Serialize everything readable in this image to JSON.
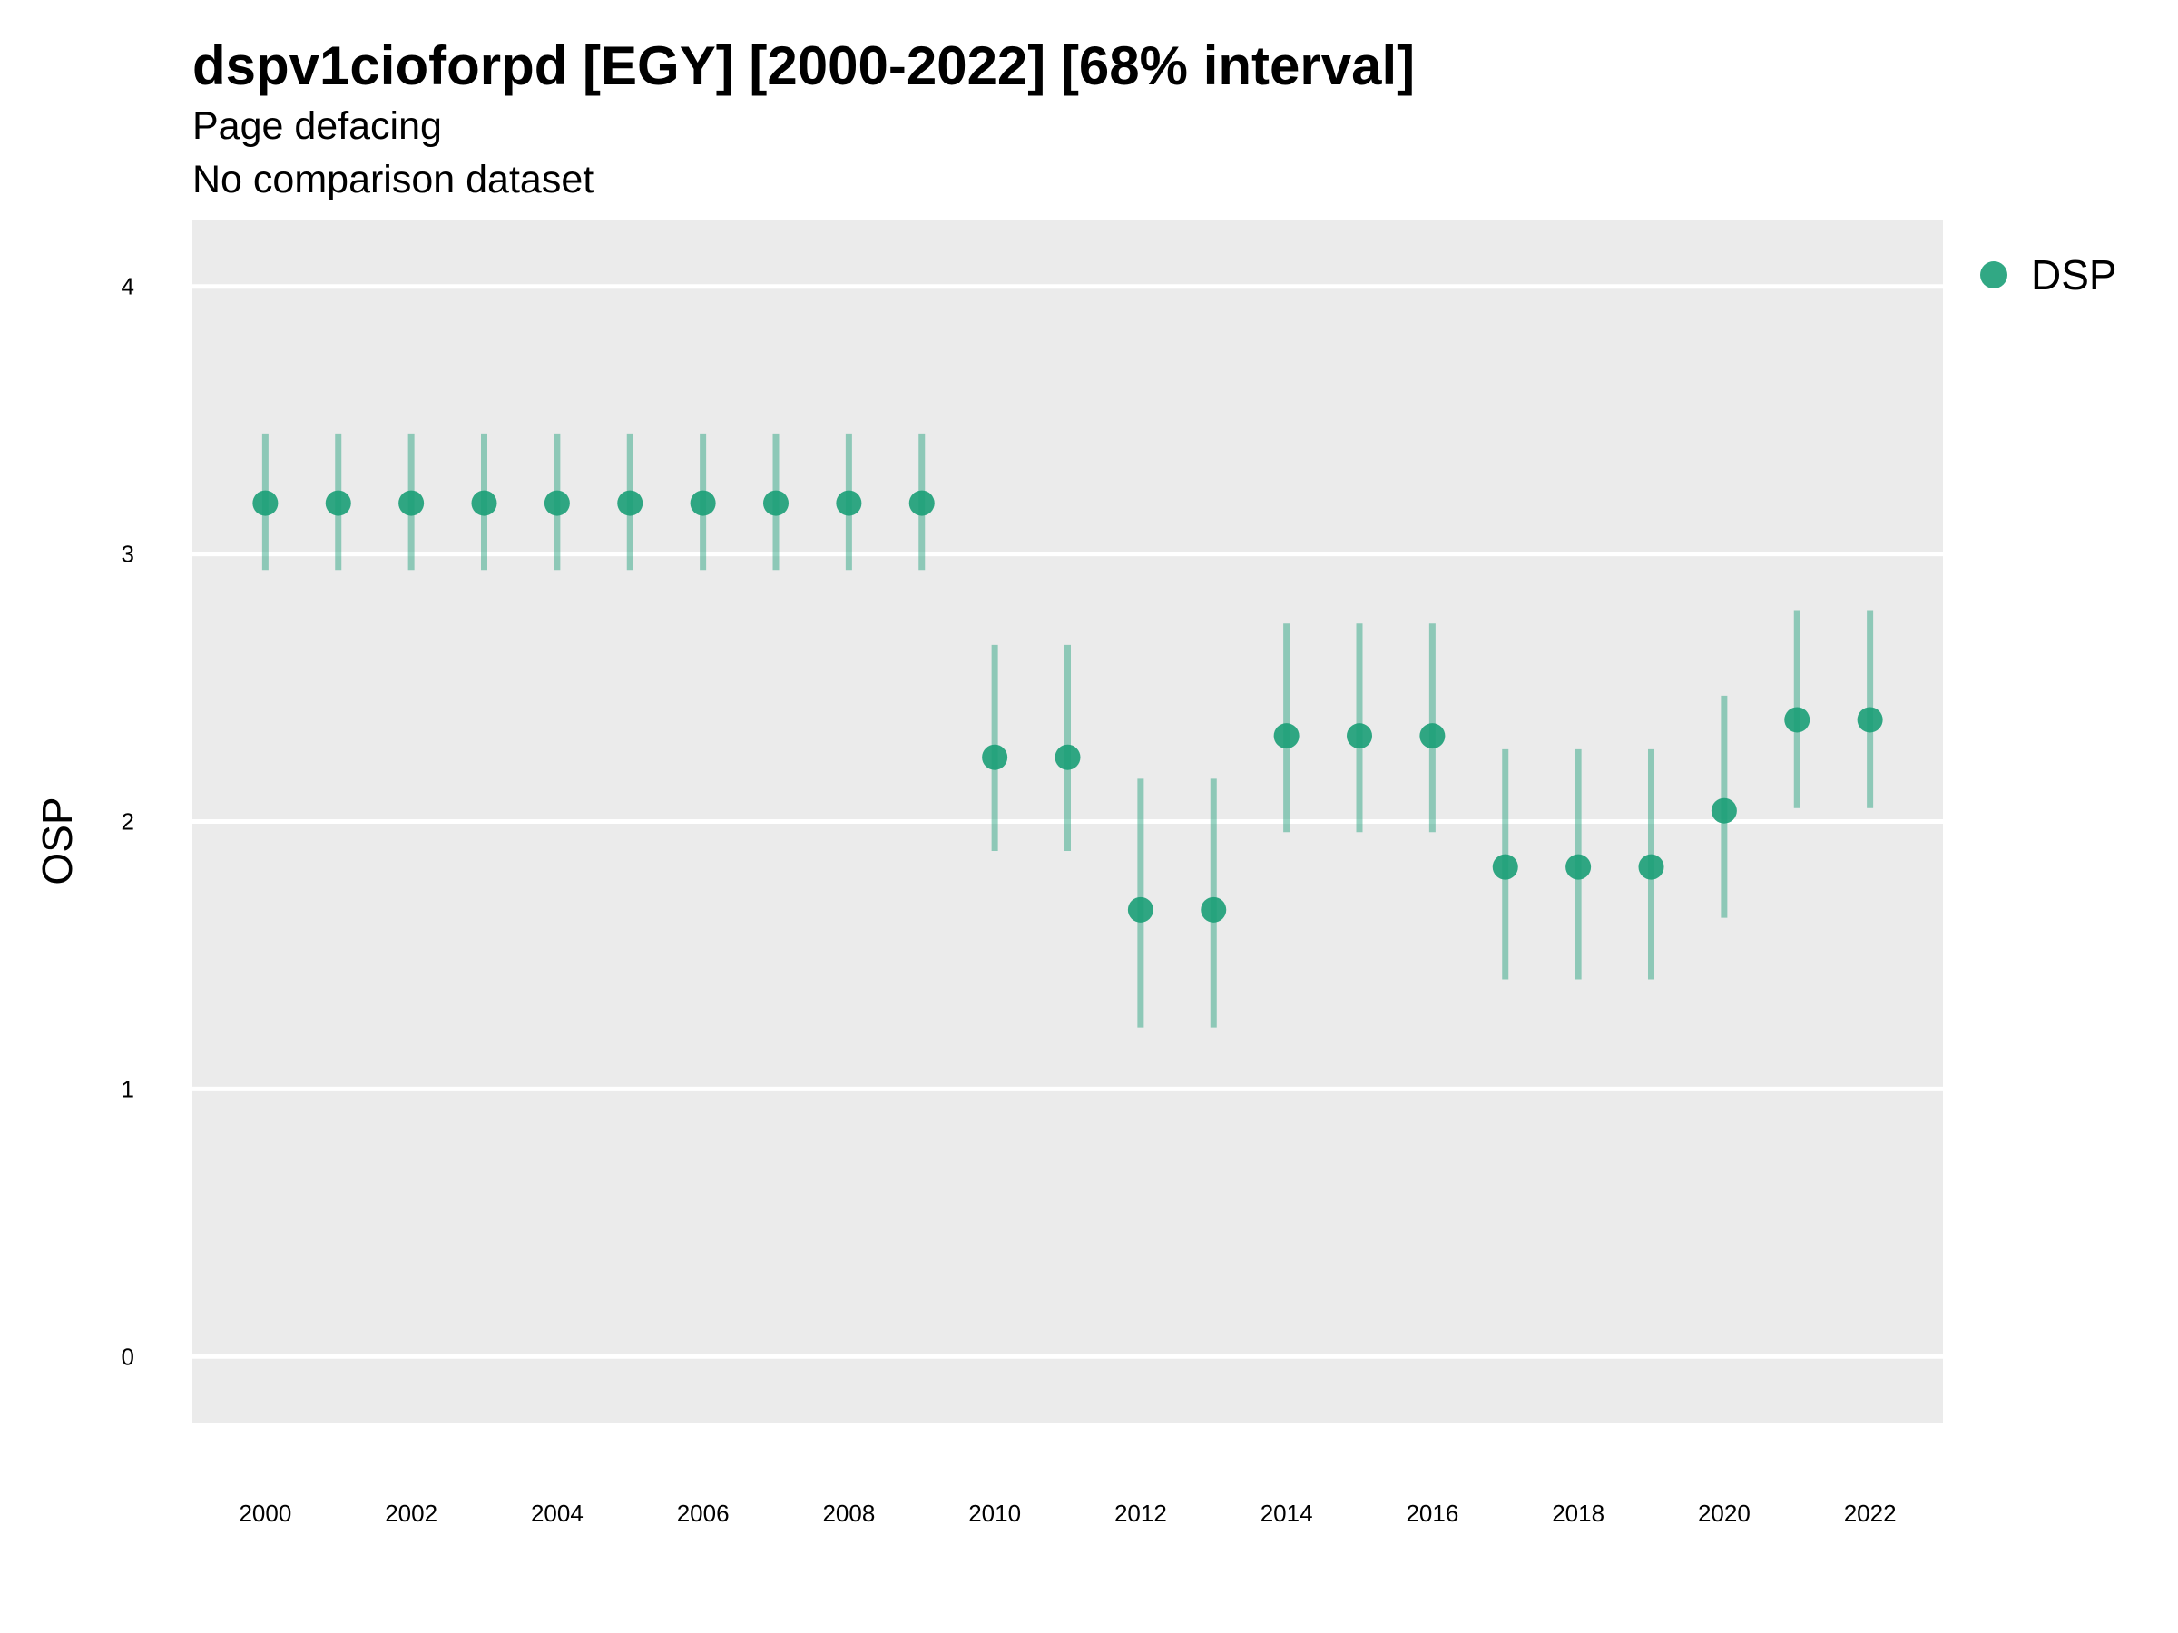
{
  "chart_data": {
    "type": "scatter",
    "title": "dspv1cioforpd [EGY] [2000-2022] [68% interval]",
    "subtitle": [
      "Page defacing",
      "No comparison dataset"
    ],
    "xlabel": "",
    "ylabel": "OSP",
    "ylim": [
      -0.25,
      4.25
    ],
    "xlim": [
      1999,
      2023
    ],
    "y_ticks": [
      "0",
      "1",
      "2",
      "3",
      "4"
    ],
    "x_ticks": [
      "2000",
      "2002",
      "2004",
      "2006",
      "2008",
      "2010",
      "2012",
      "2014",
      "2016",
      "2018",
      "2020",
      "2022"
    ],
    "grid": true,
    "legend_position": "top-right",
    "colors": {
      "point": "#1b9e77",
      "interval": "#1b9e77",
      "panel": "#ebebeb",
      "grid": "#ffffff"
    },
    "series": [
      {
        "name": "DSP",
        "x": [
          2000,
          2001,
          2002,
          2003,
          2004,
          2005,
          2006,
          2007,
          2008,
          2009,
          2010,
          2011,
          2012,
          2013,
          2014,
          2015,
          2016,
          2017,
          2018,
          2019,
          2020,
          2021,
          2022
        ],
        "y": [
          3.19,
          3.19,
          3.19,
          3.19,
          3.19,
          3.19,
          3.19,
          3.19,
          3.19,
          3.19,
          2.24,
          2.24,
          1.67,
          1.67,
          2.32,
          2.32,
          2.32,
          1.83,
          1.83,
          1.83,
          2.04,
          2.38,
          2.38
        ],
        "lower": [
          2.94,
          2.94,
          2.94,
          2.94,
          2.94,
          2.94,
          2.94,
          2.94,
          2.94,
          2.94,
          1.89,
          1.89,
          1.23,
          1.23,
          1.96,
          1.96,
          1.96,
          1.41,
          1.41,
          1.41,
          1.64,
          2.05,
          2.05
        ],
        "upper": [
          3.45,
          3.45,
          3.45,
          3.45,
          3.45,
          3.45,
          3.45,
          3.45,
          3.45,
          3.45,
          2.66,
          2.66,
          2.16,
          2.16,
          2.74,
          2.74,
          2.74,
          2.27,
          2.27,
          2.27,
          2.47,
          2.79,
          2.79
        ]
      }
    ]
  }
}
